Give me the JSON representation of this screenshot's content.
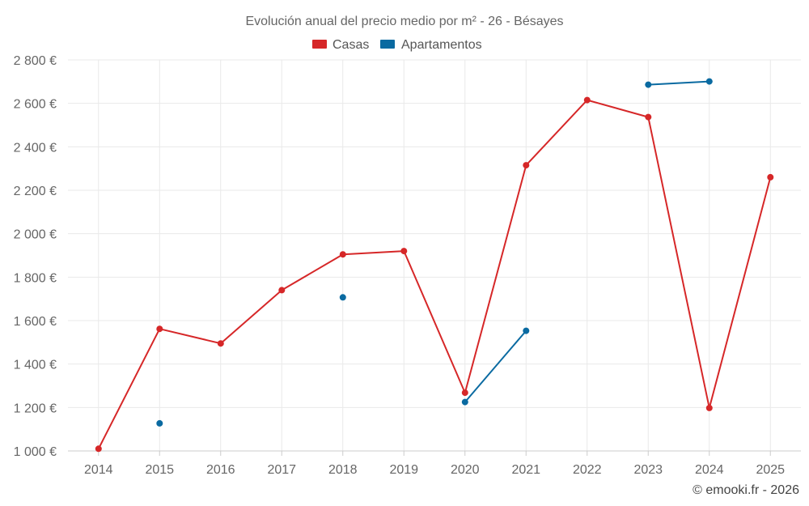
{
  "chart_data": {
    "type": "line",
    "title": "Evolución anual del precio medio por m² - 26 - Bésayes",
    "xlabel": "",
    "ylabel": "",
    "x": [
      "2014",
      "2015",
      "2016",
      "2017",
      "2018",
      "2019",
      "2020",
      "2021",
      "2022",
      "2023",
      "2024",
      "2025"
    ],
    "ylim": [
      1000,
      2800
    ],
    "y_ticks": [
      1000,
      1200,
      1400,
      1600,
      1800,
      2000,
      2200,
      2400,
      2600,
      2800
    ],
    "y_tick_labels": [
      "1 000 €",
      "1 200 €",
      "1 400 €",
      "1 600 €",
      "1 800 €",
      "2 000 €",
      "2 200 €",
      "2 400 €",
      "2 600 €",
      "2 800 €"
    ],
    "grid": true,
    "legend_position": "top-center",
    "series": [
      {
        "name": "Casas",
        "color": "#d62728",
        "values": [
          1010,
          1562,
          1495,
          1740,
          1905,
          1920,
          1268,
          2315,
          2615,
          2537,
          1198,
          2260
        ]
      },
      {
        "name": "Apartamentos",
        "color": "#0a6aa1",
        "values": [
          null,
          1127,
          null,
          null,
          1707,
          null,
          1225,
          1553,
          null,
          2686,
          2701,
          null
        ]
      }
    ],
    "credit": "© emooki.fr - 2026"
  }
}
